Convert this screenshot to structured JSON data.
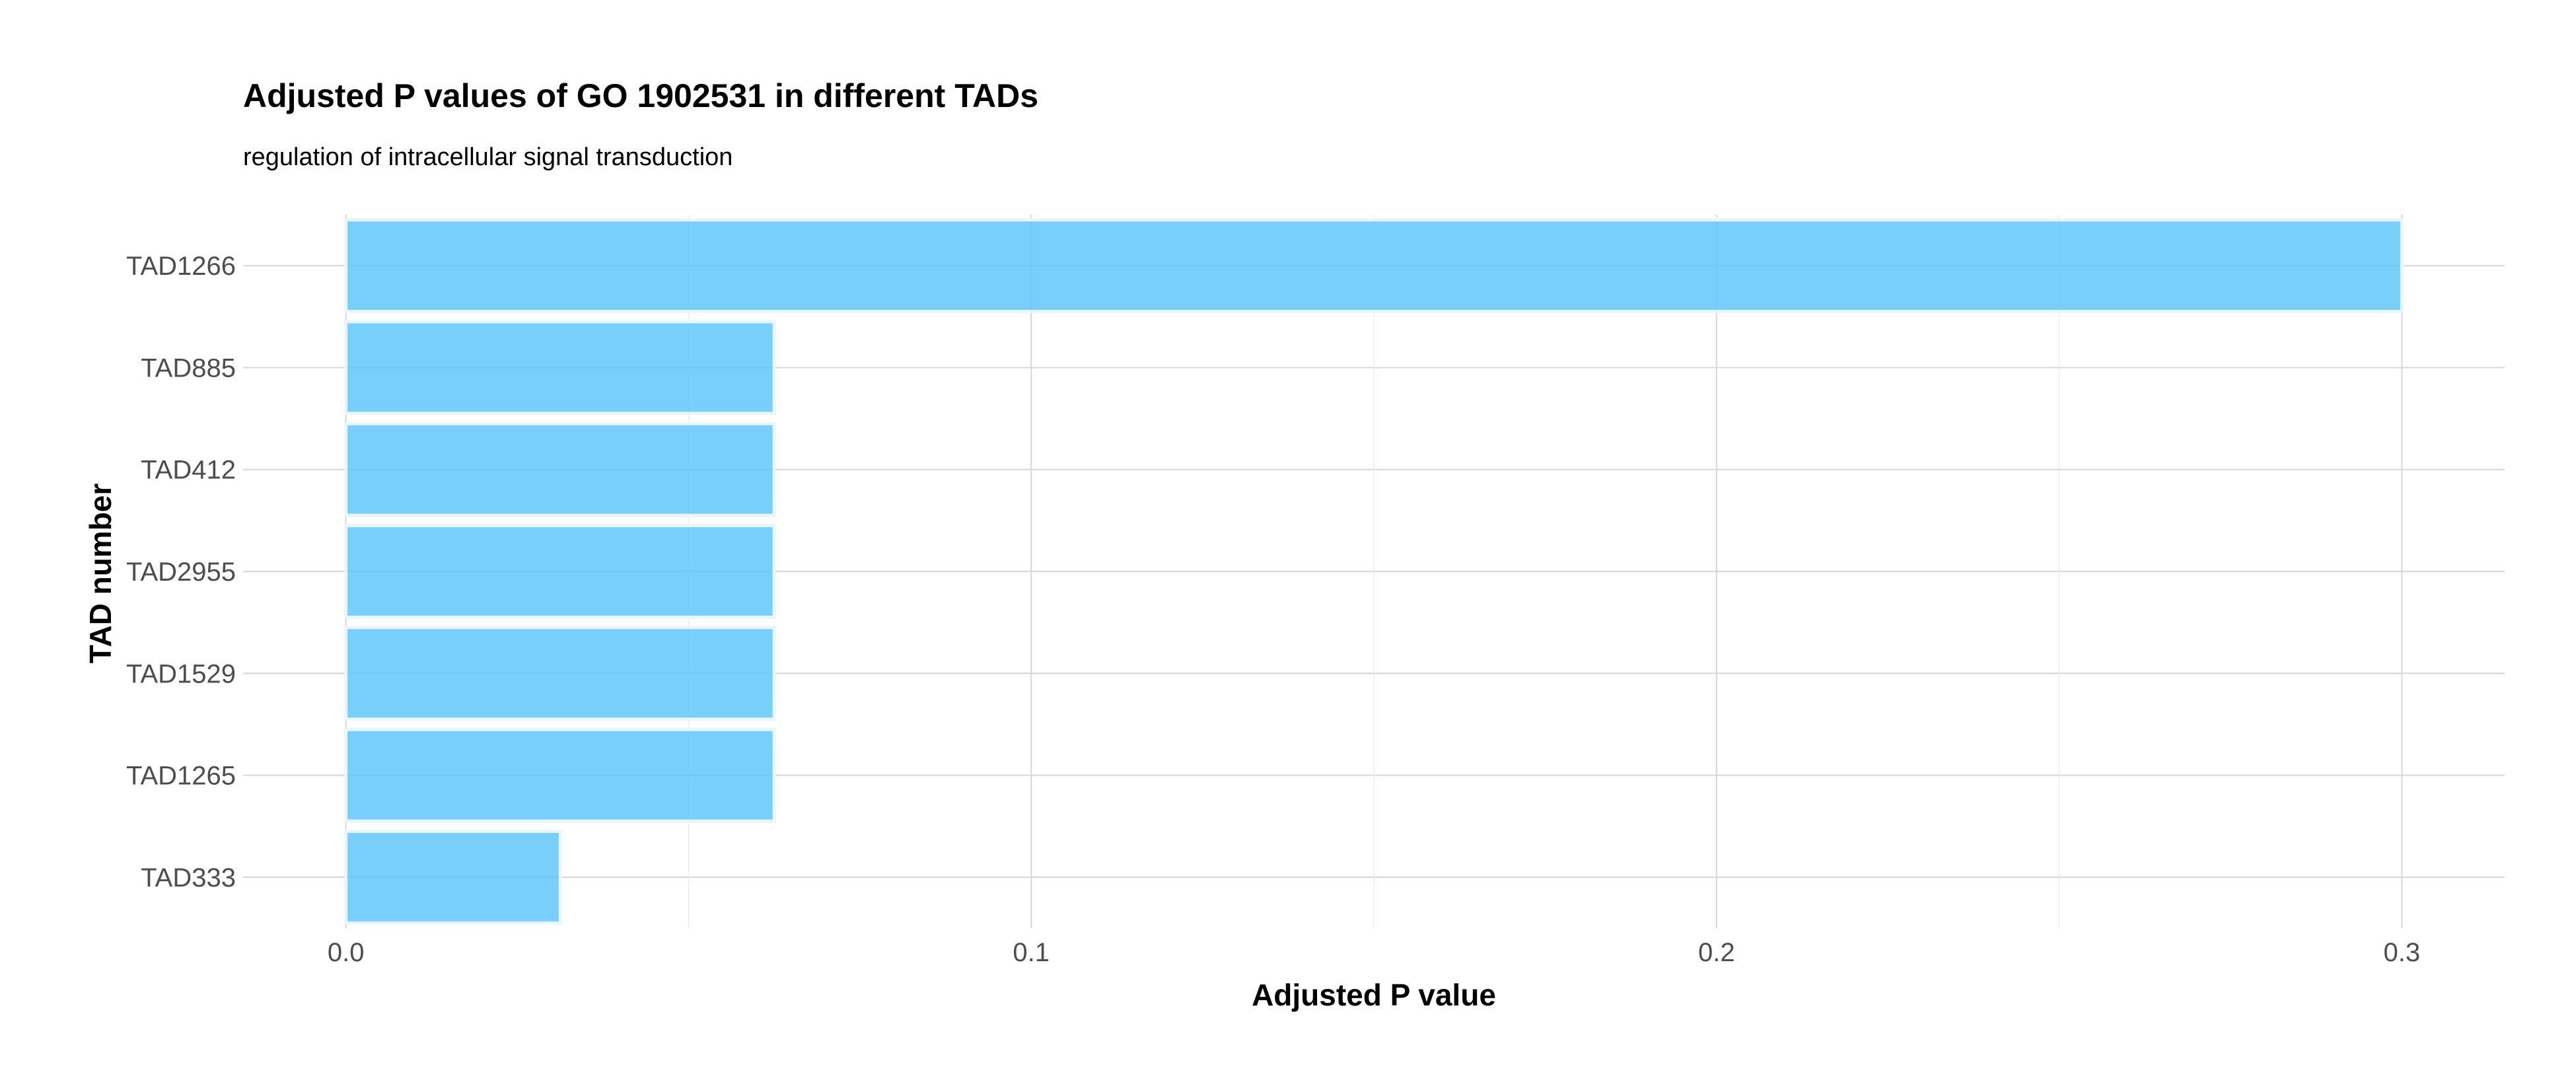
{
  "chart_data": {
    "type": "bar",
    "orientation": "horizontal",
    "title": "Adjusted P values of GO 1902531 in different TADs",
    "subtitle": "regulation of intracellular signal transduction",
    "xlabel": "Adjusted P value",
    "ylabel": "TAD number",
    "categories": [
      "TAD1266",
      "TAD885",
      "TAD412",
      "TAD2955",
      "TAD1529",
      "TAD1265",
      "TAD333"
    ],
    "values": [
      0.3,
      0.0625,
      0.0625,
      0.0625,
      0.0625,
      0.0625,
      0.0313
    ],
    "xlim": [
      -0.015,
      0.315
    ],
    "xticks": [
      0.0,
      0.1,
      0.2,
      0.3
    ],
    "xtick_labels": [
      "0.0",
      "0.1",
      "0.2",
      "0.3"
    ],
    "grid": true,
    "bar_color": "#5bc5fb",
    "bar_edge_color": "#eaf6ff",
    "grid_color": "#d9d9d9"
  }
}
